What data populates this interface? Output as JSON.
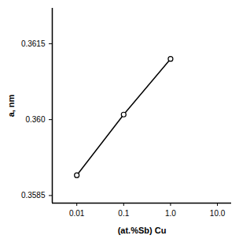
{
  "chart_data": {
    "type": "line",
    "x_label": "(at.%Sb) Cu",
    "y_label": "a, nm",
    "x": [
      0.01,
      0.1,
      1.0
    ],
    "values": [
      0.3589,
      0.3601,
      0.3612
    ],
    "color": "#000000",
    "marker": "circle",
    "line_style": "solid",
    "log": "x",
    "grid": false,
    "xlim": [
      0.003,
      20
    ],
    "xticks": [
      0.01,
      0.1,
      {
        "value": 1,
        "label": "1.0"
      },
      {
        "value": 10,
        "label": "10.0"
      }
    ],
    "ylim": [
      0.35835,
      0.3622
    ],
    "yticks": [
      0.3585,
      {
        "value": 0.36,
        "label": "0.360"
      },
      0.3615
    ]
  }
}
